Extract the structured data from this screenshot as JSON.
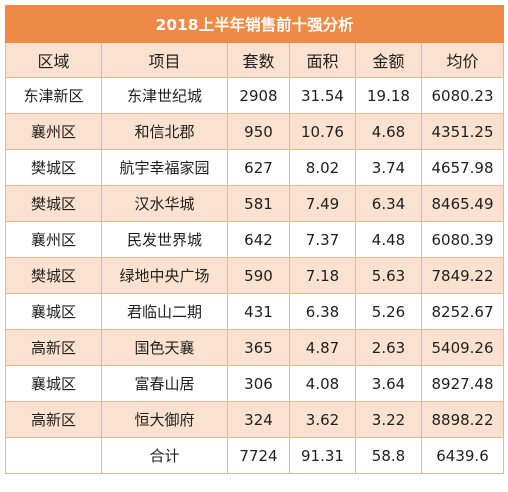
{
  "title": "2018上半年销售前十强分析",
  "columns": [
    "区域",
    "项目",
    "套数",
    "面积",
    "金额",
    "均价"
  ],
  "rows": [
    [
      "东津新区",
      "东津世纪城",
      "2908",
      "31.54",
      "19.18",
      "6080.23"
    ],
    [
      "襄州区",
      "和信北郡",
      "950",
      "10.76",
      "4.68",
      "4351.25"
    ],
    [
      "樊城区",
      "航宇幸福家园",
      "627",
      "8.02",
      "3.74",
      "4657.98"
    ],
    [
      "樊城区",
      "汉水华城",
      "581",
      "7.49",
      "6.34",
      "8465.49"
    ],
    [
      "襄州区",
      "民发世界城",
      "642",
      "7.37",
      "4.48",
      "6080.39"
    ],
    [
      "樊城区",
      "绿地中央广场",
      "590",
      "7.18",
      "5.63",
      "7849.22"
    ],
    [
      "襄城区",
      "君临山二期",
      "431",
      "6.38",
      "5.26",
      "8252.67"
    ],
    [
      "高新区",
      "国色天襄",
      "365",
      "4.87",
      "2.63",
      "5409.26"
    ],
    [
      "襄城区",
      "富春山居",
      "306",
      "4.08",
      "3.64",
      "8927.48"
    ],
    [
      "高新区",
      "恒大御府",
      "324",
      "3.62",
      "3.22",
      "8898.22"
    ]
  ],
  "total": {
    "label": "合计",
    "units": "7724",
    "area": "91.31",
    "amount": "58.8",
    "avg_price": "6439.6"
  },
  "colors": {
    "title_bg": "#ee8a45",
    "band": "#fbe1cf",
    "border": "#f0b58f"
  }
}
